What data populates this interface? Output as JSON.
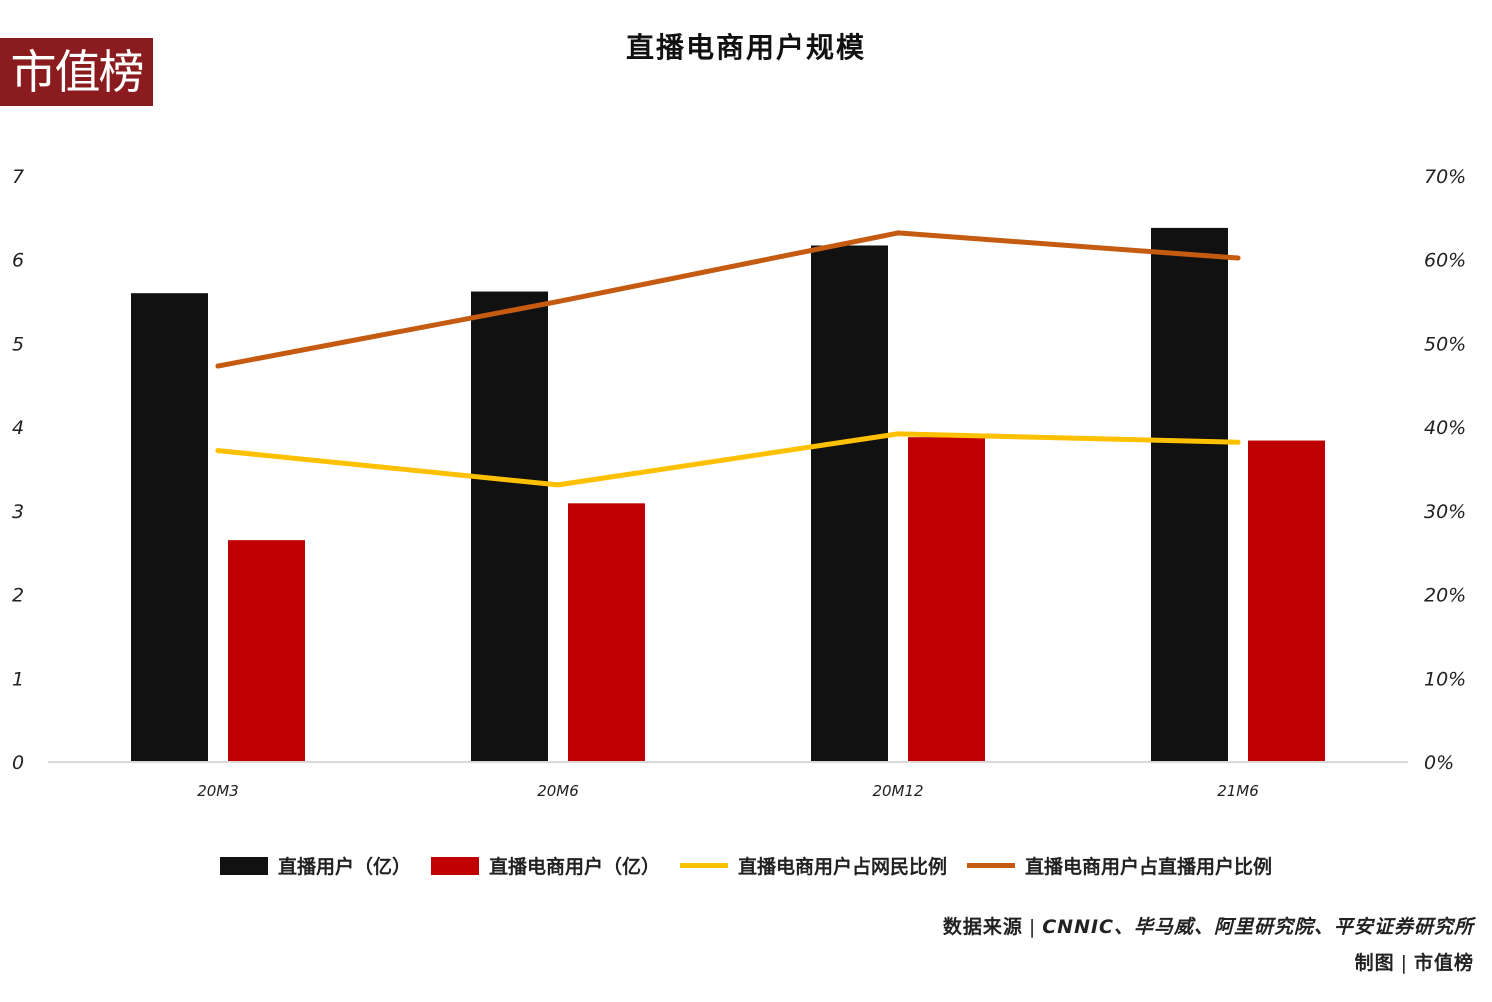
{
  "brand": {
    "logo_text": "市值榜",
    "logo_color": "#8a1c1f"
  },
  "chart_data": {
    "type": "bar",
    "title": "直播电商用户规模",
    "categories": [
      "20M3",
      "20M6",
      "20M12",
      "21M6"
    ],
    "ylim_left": [
      0,
      7
    ],
    "yticks_left": [
      0,
      1,
      2,
      3,
      4,
      5,
      6,
      7
    ],
    "ylim_right": [
      0,
      70
    ],
    "yticks_right_labels": [
      "0%",
      "10%",
      "20%",
      "30%",
      "40%",
      "50%",
      "60%",
      "70%"
    ],
    "grid": false,
    "legend_position": "bottom",
    "series": [
      {
        "name": "直播用户（亿）",
        "type": "bar",
        "axis": "left",
        "color": "#111111",
        "values": [
          5.6,
          5.62,
          6.17,
          6.38
        ]
      },
      {
        "name": "直播电商用户（亿）",
        "type": "bar",
        "axis": "left",
        "color": "#c00000",
        "values": [
          2.65,
          3.09,
          3.88,
          3.84
        ]
      },
      {
        "name": "直播电商用户占网民比例",
        "type": "line",
        "axis": "right",
        "color": "#ffc000",
        "unit": "%",
        "values": [
          37.2,
          33.1,
          39.2,
          38.2
        ]
      },
      {
        "name": "直播电商用户占直播用户比例",
        "type": "line",
        "axis": "right",
        "color": "#c55a11",
        "unit": "%",
        "values": [
          47.3,
          55.0,
          63.2,
          60.2
        ]
      }
    ]
  },
  "footer": {
    "source_label": "数据来源",
    "source_value": "CNNIC、毕马威、阿里研究院、平安证券研究所",
    "credit_label": "制图",
    "credit_value": "市值榜",
    "separator": "|"
  }
}
